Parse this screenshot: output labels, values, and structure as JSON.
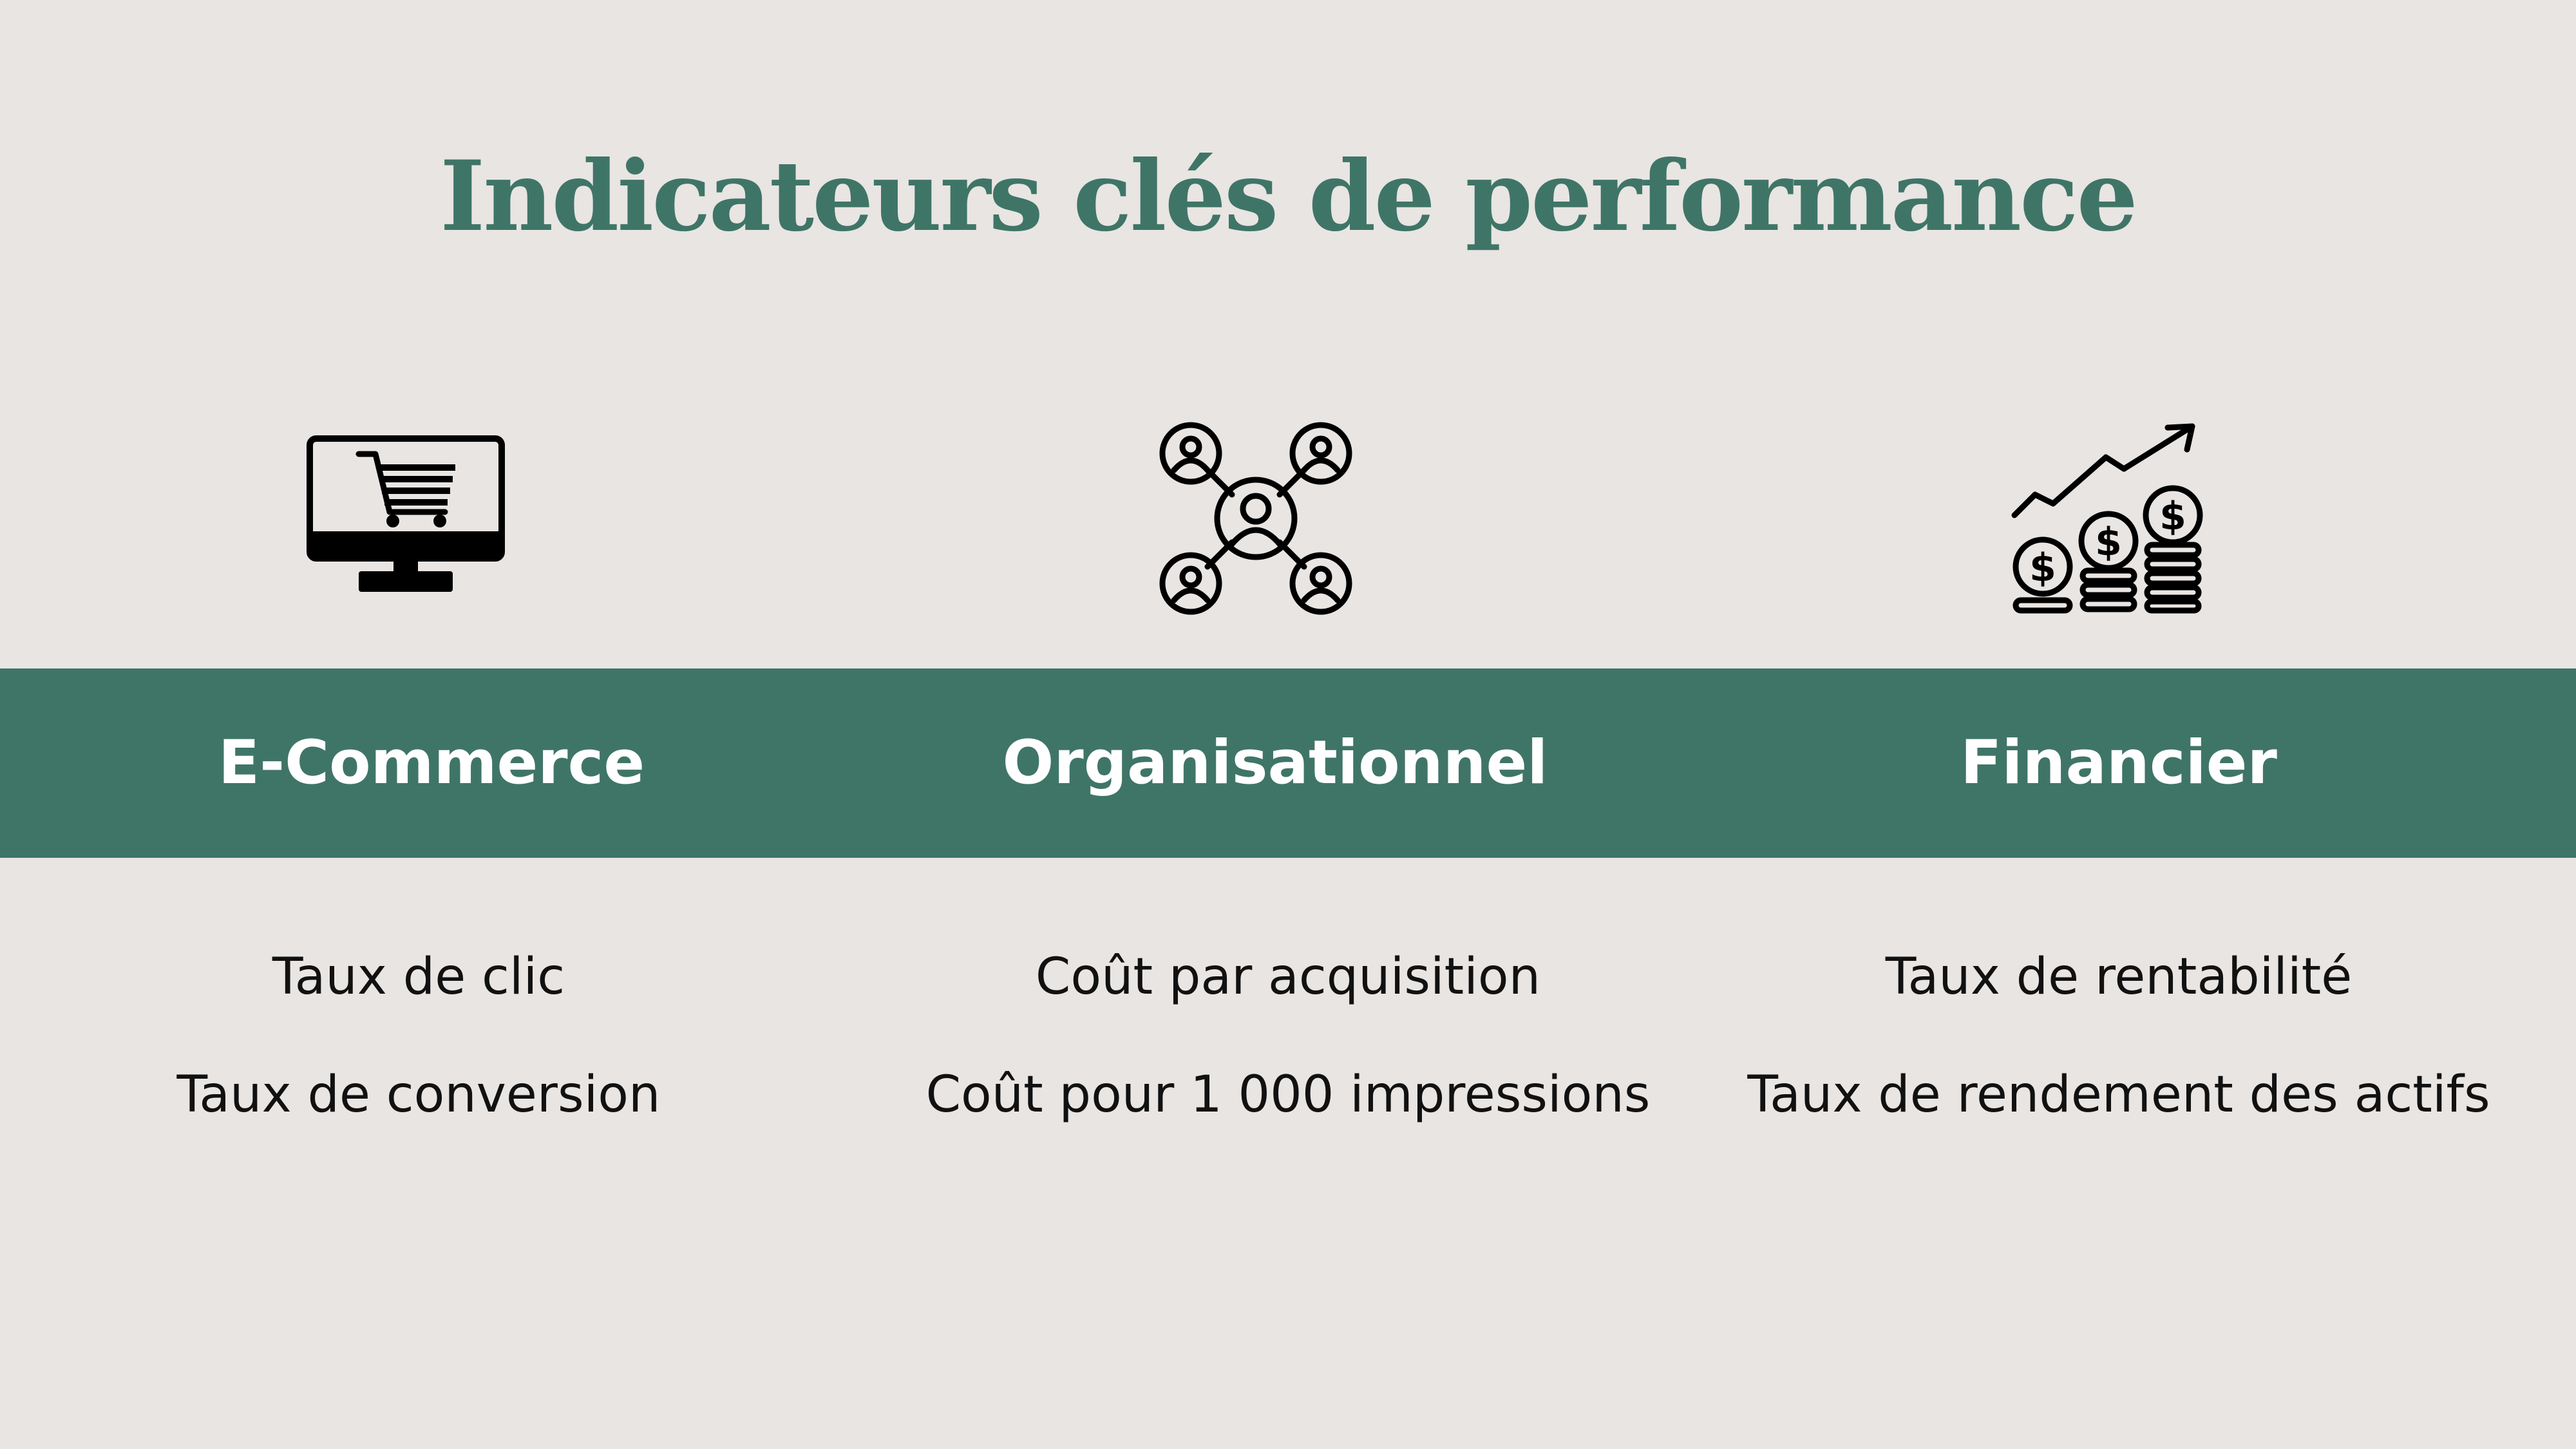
{
  "title": "Indicateurs clés de performance",
  "colors": {
    "background": "#e8e5e3",
    "accent": "#3f7567",
    "band_text": "#ffffff",
    "body_text": "#111111"
  },
  "columns": [
    {
      "icon": "shopping-cart-monitor-icon",
      "label": "E-Commerce",
      "items": [
        "Taux de clic",
        "Taux de conversion"
      ]
    },
    {
      "icon": "people-network-icon",
      "label": "Organisationnel",
      "items": [
        "Coût par acquisition",
        "Coût pour 1 000 impressions"
      ]
    },
    {
      "icon": "financial-growth-coins-icon",
      "label": "Financier",
      "items": [
        "Taux de rentabilité",
        "Taux de rendement des actifs"
      ]
    }
  ]
}
